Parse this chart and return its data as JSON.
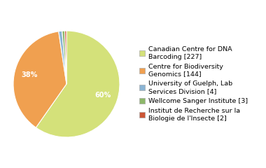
{
  "legend_labels": [
    "Canadian Centre for DNA\nBarcoding [227]",
    "Centre for Biodiversity\nGenomics [144]",
    "University of Guelph, Lab\nServices Division [4]",
    "Wellcome Sanger Institute [3]",
    "Institut de Recherche sur la\nBiologie de l'Insecte [2]"
  ],
  "values": [
    227,
    144,
    4,
    3,
    2
  ],
  "colors": [
    "#d4e17a",
    "#f0a050",
    "#8ab4d4",
    "#8db86a",
    "#cc5535"
  ],
  "background_color": "#ffffff",
  "label_fontsize": 7,
  "legend_fontsize": 6.8,
  "startangle": 90
}
